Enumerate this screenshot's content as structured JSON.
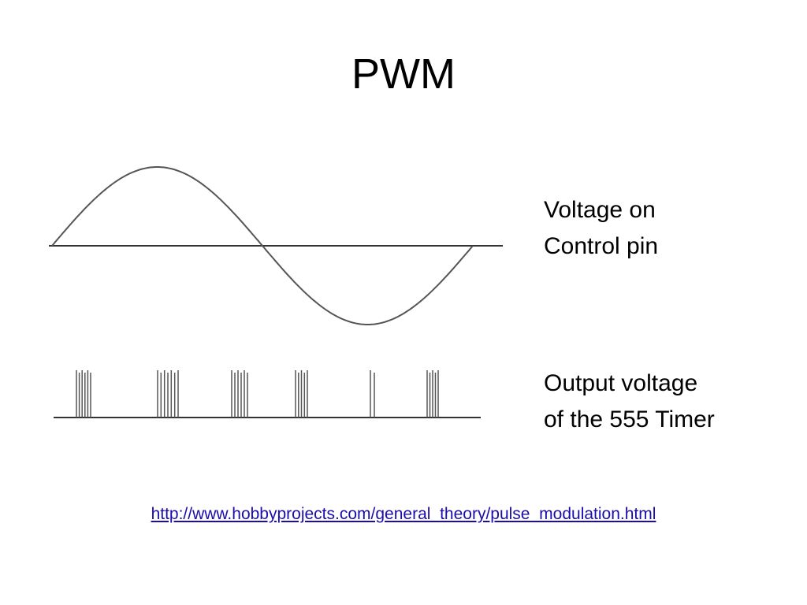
{
  "slide": {
    "title": "PWM",
    "labels": {
      "control_line1": "Voltage on",
      "control_line2": "Control pin",
      "output_line1": "Output voltage",
      "output_line2": "of the 555 Timer"
    },
    "source_url": "http://www.hobbyprojects.com/general_theory/pulse_modulation.html"
  },
  "colors": {
    "waveform": "#555555",
    "axis": "#333333",
    "link": "#1a0dab"
  }
}
